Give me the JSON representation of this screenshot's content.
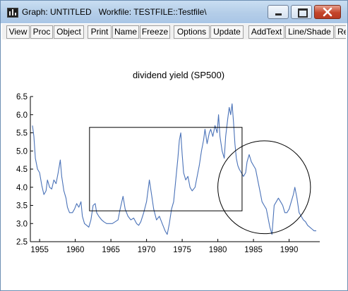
{
  "window": {
    "title": "Graph: UNTITLED   Workfile: TESTFILE::Testfile\\"
  },
  "title_buttons": [
    "minimize-icon",
    "maximize-icon",
    "close-icon"
  ],
  "toolbar": {
    "buttons": [
      "View",
      "Proc",
      "Object",
      "Print",
      "Name",
      "Freeze",
      "Options",
      "Update",
      "AddText",
      "Line/Shade",
      "Re"
    ]
  },
  "colors": {
    "series": "#4a72b8",
    "close": "#c4452b"
  },
  "chart_data": {
    "type": "line",
    "title": "dividend yield (SP500)",
    "xlabel": "",
    "ylabel": "",
    "xlim": [
      1953.7,
      1994.3
    ],
    "ylim": [
      2.5,
      6.5
    ],
    "x_ticks": [
      1955,
      1960,
      1965,
      1970,
      1975,
      1980,
      1985,
      1990
    ],
    "y_ticks": [
      2.5,
      3.0,
      3.5,
      4.0,
      4.5,
      5.0,
      5.5,
      6.0,
      6.5
    ],
    "grid": false,
    "series": [
      {
        "values": [
          [
            1954.0,
            5.7
          ],
          [
            1954.2,
            5.4
          ],
          [
            1954.4,
            4.8
          ],
          [
            1954.7,
            4.5
          ],
          [
            1955.0,
            4.4
          ],
          [
            1955.3,
            4.05
          ],
          [
            1955.6,
            3.8
          ],
          [
            1955.9,
            3.9
          ],
          [
            1956.1,
            4.2
          ],
          [
            1956.4,
            4.0
          ],
          [
            1956.7,
            3.95
          ],
          [
            1957.0,
            4.2
          ],
          [
            1957.3,
            4.1
          ],
          [
            1957.6,
            4.4
          ],
          [
            1957.9,
            4.75
          ],
          [
            1958.1,
            4.3
          ],
          [
            1958.4,
            3.9
          ],
          [
            1958.7,
            3.7
          ],
          [
            1958.9,
            3.45
          ],
          [
            1959.2,
            3.3
          ],
          [
            1959.6,
            3.3
          ],
          [
            1959.9,
            3.4
          ],
          [
            1960.2,
            3.55
          ],
          [
            1960.5,
            3.45
          ],
          [
            1960.8,
            3.6
          ],
          [
            1961.0,
            3.2
          ],
          [
            1961.3,
            3.0
          ],
          [
            1961.6,
            2.95
          ],
          [
            1961.9,
            2.9
          ],
          [
            1962.2,
            3.1
          ],
          [
            1962.5,
            3.5
          ],
          [
            1962.8,
            3.55
          ],
          [
            1963.0,
            3.3
          ],
          [
            1963.3,
            3.2
          ],
          [
            1963.7,
            3.1
          ],
          [
            1964.0,
            3.05
          ],
          [
            1964.4,
            3.0
          ],
          [
            1964.8,
            3.0
          ],
          [
            1965.2,
            3.0
          ],
          [
            1965.6,
            3.05
          ],
          [
            1966.0,
            3.1
          ],
          [
            1966.3,
            3.4
          ],
          [
            1966.7,
            3.75
          ],
          [
            1967.0,
            3.4
          ],
          [
            1967.4,
            3.2
          ],
          [
            1967.8,
            3.1
          ],
          [
            1968.2,
            3.15
          ],
          [
            1968.6,
            3.0
          ],
          [
            1968.9,
            2.95
          ],
          [
            1969.2,
            3.05
          ],
          [
            1969.6,
            3.3
          ],
          [
            1970.0,
            3.6
          ],
          [
            1970.2,
            3.9
          ],
          [
            1970.4,
            4.2
          ],
          [
            1970.7,
            3.8
          ],
          [
            1971.0,
            3.4
          ],
          [
            1971.4,
            3.1
          ],
          [
            1971.8,
            3.2
          ],
          [
            1972.2,
            3.0
          ],
          [
            1972.6,
            2.8
          ],
          [
            1972.9,
            2.7
          ],
          [
            1973.2,
            3.0
          ],
          [
            1973.5,
            3.4
          ],
          [
            1973.8,
            3.6
          ],
          [
            1974.1,
            4.2
          ],
          [
            1974.4,
            4.8
          ],
          [
            1974.6,
            5.3
          ],
          [
            1974.8,
            5.5
          ],
          [
            1975.0,
            4.9
          ],
          [
            1975.2,
            4.4
          ],
          [
            1975.5,
            4.2
          ],
          [
            1975.8,
            4.3
          ],
          [
            1976.1,
            4.0
          ],
          [
            1976.4,
            3.9
          ],
          [
            1976.8,
            4.0
          ],
          [
            1977.1,
            4.3
          ],
          [
            1977.4,
            4.6
          ],
          [
            1977.7,
            5.0
          ],
          [
            1978.0,
            5.3
          ],
          [
            1978.2,
            5.6
          ],
          [
            1978.5,
            5.2
          ],
          [
            1978.8,
            5.5
          ],
          [
            1979.0,
            5.6
          ],
          [
            1979.3,
            5.4
          ],
          [
            1979.6,
            5.7
          ],
          [
            1979.9,
            5.5
          ],
          [
            1980.1,
            6.0
          ],
          [
            1980.3,
            5.4
          ],
          [
            1980.6,
            5.0
          ],
          [
            1980.9,
            4.8
          ],
          [
            1981.1,
            5.4
          ],
          [
            1981.4,
            5.9
          ],
          [
            1981.6,
            6.2
          ],
          [
            1981.8,
            6.0
          ],
          [
            1982.0,
            6.3
          ],
          [
            1982.2,
            5.8
          ],
          [
            1982.4,
            5.2
          ],
          [
            1982.6,
            4.8
          ],
          [
            1982.8,
            4.6
          ],
          [
            1983.0,
            4.5
          ],
          [
            1983.3,
            4.4
          ],
          [
            1983.6,
            4.3
          ],
          [
            1983.9,
            4.4
          ],
          [
            1984.1,
            4.7
          ],
          [
            1984.4,
            4.9
          ],
          [
            1984.7,
            4.7
          ],
          [
            1985.0,
            4.6
          ],
          [
            1985.3,
            4.5
          ],
          [
            1985.6,
            4.2
          ],
          [
            1985.9,
            3.9
          ],
          [
            1986.2,
            3.6
          ],
          [
            1986.5,
            3.5
          ],
          [
            1986.8,
            3.4
          ],
          [
            1987.0,
            3.2
          ],
          [
            1987.3,
            2.9
          ],
          [
            1987.6,
            2.7
          ],
          [
            1987.9,
            3.5
          ],
          [
            1988.2,
            3.6
          ],
          [
            1988.5,
            3.7
          ],
          [
            1988.8,
            3.6
          ],
          [
            1989.1,
            3.5
          ],
          [
            1989.4,
            3.3
          ],
          [
            1989.7,
            3.3
          ],
          [
            1990.0,
            3.4
          ],
          [
            1990.3,
            3.6
          ],
          [
            1990.6,
            3.8
          ],
          [
            1990.8,
            4.0
          ],
          [
            1991.1,
            3.7
          ],
          [
            1991.4,
            3.3
          ],
          [
            1991.7,
            3.2
          ],
          [
            1992.0,
            3.1
          ],
          [
            1992.3,
            3.05
          ],
          [
            1992.6,
            2.95
          ],
          [
            1992.9,
            2.9
          ],
          [
            1993.2,
            2.85
          ],
          [
            1993.5,
            2.8
          ],
          [
            1993.8,
            2.8
          ]
        ]
      }
    ],
    "shapes": [
      {
        "type": "rectangle",
        "x": [
          1962.0,
          1983.4
        ],
        "y": [
          3.35,
          5.65
        ]
      },
      {
        "type": "ellipse",
        "x": [
          1980.0,
          1993.0
        ],
        "y": [
          2.72,
          5.28
        ]
      }
    ]
  }
}
